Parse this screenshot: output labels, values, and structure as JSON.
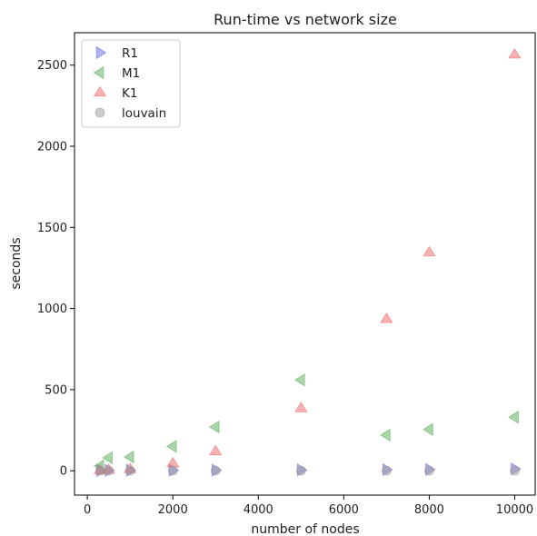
{
  "chart_data": {
    "type": "scatter",
    "title": "Run-time vs network size",
    "xlabel": "number of nodes",
    "ylabel": "seconds",
    "xlim": [
      -300,
      10500
    ],
    "ylim": [
      -150,
      2700
    ],
    "xticks": [
      0,
      2000,
      4000,
      6000,
      8000,
      10000
    ],
    "yticks": [
      0,
      500,
      1000,
      1500,
      2000,
      2500
    ],
    "grid": false,
    "legend_position": "top-left",
    "series": [
      {
        "name": "R1",
        "marker": "triangle-right",
        "color": "#6666dd",
        "points": [
          {
            "x": 300,
            "y": 2
          },
          {
            "x": 500,
            "y": 3
          },
          {
            "x": 1000,
            "y": 3
          },
          {
            "x": 2000,
            "y": 3
          },
          {
            "x": 3000,
            "y": 4
          },
          {
            "x": 5000,
            "y": 5
          },
          {
            "x": 7000,
            "y": 7
          },
          {
            "x": 8000,
            "y": 8
          },
          {
            "x": 10000,
            "y": 12
          }
        ]
      },
      {
        "name": "M1",
        "marker": "triangle-left",
        "color": "#55aa55",
        "points": [
          {
            "x": 300,
            "y": 30
          },
          {
            "x": 500,
            "y": 80
          },
          {
            "x": 1000,
            "y": 85
          },
          {
            "x": 2000,
            "y": 150
          },
          {
            "x": 3000,
            "y": 270
          },
          {
            "x": 5000,
            "y": 560
          },
          {
            "x": 7000,
            "y": 220
          },
          {
            "x": 8000,
            "y": 255
          },
          {
            "x": 10000,
            "y": 330
          }
        ]
      },
      {
        "name": "K1",
        "marker": "triangle-up",
        "color": "#ee6666",
        "points": [
          {
            "x": 300,
            "y": 3
          },
          {
            "x": 500,
            "y": 5
          },
          {
            "x": 1000,
            "y": 10
          },
          {
            "x": 2000,
            "y": 45
          },
          {
            "x": 3000,
            "y": 120
          },
          {
            "x": 5000,
            "y": 385
          },
          {
            "x": 7000,
            "y": 935
          },
          {
            "x": 8000,
            "y": 1345
          },
          {
            "x": 10000,
            "y": 2565
          }
        ]
      },
      {
        "name": "louvain",
        "marker": "circle",
        "color": "#999999",
        "points": [
          {
            "x": 300,
            "y": 1
          },
          {
            "x": 500,
            "y": 1
          },
          {
            "x": 1000,
            "y": 1
          },
          {
            "x": 2000,
            "y": 1
          },
          {
            "x": 3000,
            "y": 1
          },
          {
            "x": 5000,
            "y": 1
          },
          {
            "x": 7000,
            "y": 1
          },
          {
            "x": 8000,
            "y": 1
          },
          {
            "x": 10000,
            "y": 1
          }
        ]
      }
    ]
  }
}
